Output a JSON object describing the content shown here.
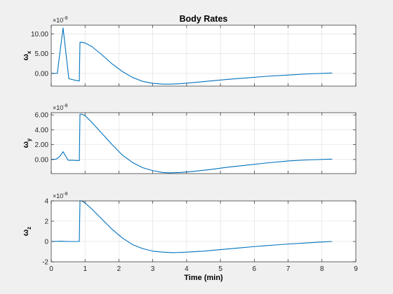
{
  "figure": {
    "title": "Body Rates",
    "xlabel": "Time (min)",
    "background": "#f0f0f0",
    "axes_background": "#ffffff",
    "line_color": "#0072bd",
    "grid_color": "#dcdcdc"
  },
  "chart_data": [
    {
      "type": "line",
      "title": "Body Rates",
      "ylabel": "ω_x",
      "ylabel_main": "ω",
      "ylabel_sub": "x",
      "exponent_label": "×10",
      "exponent_power": "-8",
      "grid": true,
      "xlim": [
        0,
        9
      ],
      "ylim": [
        -3.2,
        12.2
      ],
      "yticks": [
        0,
        5,
        10
      ],
      "ytick_labels": [
        "0.00",
        "5.00",
        "10.00"
      ],
      "show_xticks": false,
      "series": [
        {
          "x": [
            0,
            0.18,
            0.35,
            0.52,
            0.6,
            0.7,
            0.83,
            0.85,
            0.9,
            1.0,
            1.2,
            1.5,
            1.8,
            2.1,
            2.4,
            2.7,
            3.0,
            3.3,
            3.5,
            3.8,
            4.2,
            4.7,
            5.2,
            5.8,
            6.4,
            7.0,
            7.6,
            8.3
          ],
          "y": [
            0,
            0.05,
            11.5,
            -1.3,
            -1.5,
            -1.7,
            -1.9,
            7.9,
            7.9,
            7.7,
            6.8,
            4.7,
            2.4,
            0.5,
            -1.0,
            -2.0,
            -2.5,
            -2.7,
            -2.7,
            -2.6,
            -2.3,
            -1.9,
            -1.5,
            -1.1,
            -0.7,
            -0.4,
            -0.1,
            0.1
          ]
        }
      ]
    },
    {
      "type": "line",
      "title": "",
      "ylabel": "ω_y",
      "ylabel_main": "ω",
      "ylabel_sub": "y",
      "exponent_label": "×10",
      "exponent_power": "-8",
      "grid": true,
      "xlim": [
        0,
        9
      ],
      "ylim": [
        -1.9,
        6.3
      ],
      "yticks": [
        0,
        2,
        4,
        6
      ],
      "ytick_labels": [
        "0.00",
        "2.00",
        "4.00",
        "6.00"
      ],
      "show_xticks": false,
      "series": [
        {
          "x": [
            0,
            0.15,
            0.25,
            0.35,
            0.5,
            0.6,
            0.83,
            0.85,
            0.9,
            1.0,
            1.2,
            1.5,
            1.8,
            2.1,
            2.4,
            2.7,
            3.0,
            3.3,
            3.5,
            3.8,
            4.2,
            4.7,
            5.2,
            5.8,
            6.4,
            7.0,
            7.6,
            8.3
          ],
          "y": [
            0,
            0.05,
            0.4,
            1.05,
            -0.1,
            -0.1,
            -0.15,
            6.1,
            6.1,
            5.9,
            5.0,
            3.5,
            2.0,
            0.6,
            -0.4,
            -1.1,
            -1.5,
            -1.75,
            -1.8,
            -1.75,
            -1.6,
            -1.35,
            -1.05,
            -0.75,
            -0.45,
            -0.2,
            -0.05,
            0.05
          ]
        }
      ]
    },
    {
      "type": "line",
      "title": "",
      "ylabel": "ω_z",
      "ylabel_main": "ω",
      "ylabel_sub": "z",
      "exponent_label": "×10",
      "exponent_power": "-8",
      "grid": true,
      "xlim": [
        0,
        9
      ],
      "ylim": [
        -2,
        4
      ],
      "yticks": [
        -2,
        0,
        2,
        4
      ],
      "ytick_labels": [
        "-2",
        "0",
        "2",
        "4"
      ],
      "show_xticks": true,
      "xticks": [
        0,
        1,
        2,
        3,
        4,
        5,
        6,
        7,
        8,
        9
      ],
      "xtick_labels": [
        "0",
        "1",
        "2",
        "3",
        "4",
        "5",
        "6",
        "7",
        "8",
        "9"
      ],
      "xlabel": "Time (min)",
      "series": [
        {
          "x": [
            0,
            0.3,
            0.5,
            0.83,
            0.85,
            0.9,
            1.0,
            1.2,
            1.5,
            1.8,
            2.1,
            2.4,
            2.7,
            3.0,
            3.3,
            3.6,
            4.0,
            4.5,
            5.0,
            5.5,
            6.0,
            6.5,
            7.0,
            7.5,
            8.0,
            8.3
          ],
          "y": [
            0,
            0.03,
            0.0,
            0.0,
            4.0,
            4.0,
            3.8,
            3.2,
            2.2,
            1.2,
            0.35,
            -0.3,
            -0.7,
            -0.95,
            -1.05,
            -1.1,
            -1.05,
            -0.95,
            -0.8,
            -0.65,
            -0.5,
            -0.37,
            -0.25,
            -0.15,
            -0.05,
            0.0
          ]
        }
      ]
    }
  ]
}
